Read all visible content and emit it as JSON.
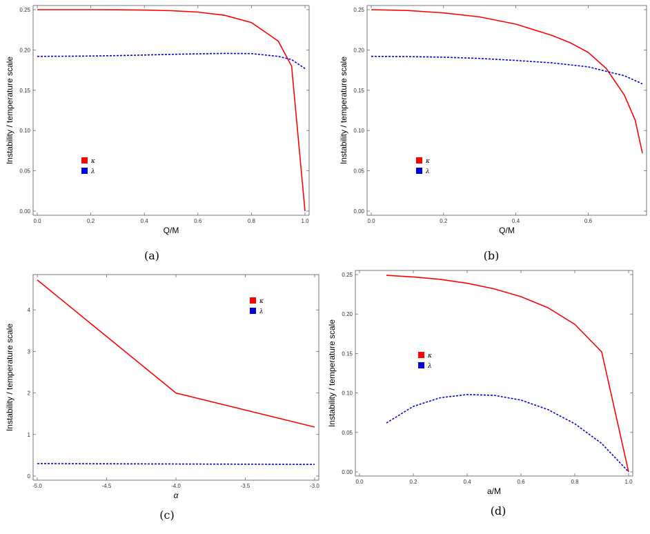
{
  "chart_data": [
    {
      "type": "line",
      "panel": "a",
      "caption": "(a)",
      "xlabel": "Q/M",
      "ylabel": "Instability / temperature scale",
      "xlim": [
        0,
        1.0
      ],
      "ylim": [
        0,
        0.25
      ],
      "xticks": [
        0.0,
        0.2,
        0.4,
        0.6,
        0.8,
        1.0
      ],
      "yticks": [
        0.0,
        0.05,
        0.1,
        0.15,
        0.2,
        0.25
      ],
      "xtick_labels": [
        "0.0",
        "0.2",
        "0.4",
        "0.6",
        "0.8",
        "1.0"
      ],
      "ytick_labels": [
        "0.00",
        "0.05",
        "0.10",
        "0.15",
        "0.20",
        "0.25"
      ],
      "legend_position": "left",
      "series": [
        {
          "name": "κ",
          "color": "#ff0000",
          "dash": false,
          "x": [
            0,
            0.1,
            0.2,
            0.3,
            0.4,
            0.5,
            0.6,
            0.7,
            0.8,
            0.9,
            0.95,
            1.0
          ],
          "y": [
            0.25,
            0.25,
            0.25,
            0.2498,
            0.2495,
            0.2487,
            0.247,
            0.243,
            0.234,
            0.211,
            0.18,
            0.0
          ]
        },
        {
          "name": "λ",
          "color": "#0000dd",
          "dash": true,
          "x": [
            0,
            0.1,
            0.2,
            0.3,
            0.4,
            0.5,
            0.6,
            0.7,
            0.8,
            0.9,
            0.95,
            1.0
          ],
          "y": [
            0.192,
            0.1922,
            0.1925,
            0.193,
            0.1937,
            0.1945,
            0.1952,
            0.1957,
            0.1955,
            0.192,
            0.188,
            0.177
          ]
        }
      ]
    },
    {
      "type": "line",
      "panel": "b",
      "caption": "(b)",
      "xlabel": "Q/M",
      "ylabel": "Instability / temperature scale",
      "xlim": [
        0,
        0.75
      ],
      "ylim": [
        0,
        0.25
      ],
      "xticks": [
        0.0,
        0.2,
        0.4,
        0.6
      ],
      "yticks": [
        0.0,
        0.05,
        0.1,
        0.15,
        0.2,
        0.25
      ],
      "xtick_labels": [
        "0.0",
        "0.2",
        "0.4",
        "0.6"
      ],
      "ytick_labels": [
        "0.00",
        "0.05",
        "0.10",
        "0.15",
        "0.20",
        "0.25"
      ],
      "legend_position": "left",
      "series": [
        {
          "name": "κ",
          "color": "#ff0000",
          "dash": false,
          "x": [
            0,
            0.1,
            0.2,
            0.3,
            0.4,
            0.5,
            0.55,
            0.6,
            0.65,
            0.7,
            0.73,
            0.75
          ],
          "y": [
            0.25,
            0.249,
            0.246,
            0.241,
            0.232,
            0.218,
            0.209,
            0.197,
            0.177,
            0.144,
            0.113,
            0.072
          ]
        },
        {
          "name": "λ",
          "color": "#0000dd",
          "dash": true,
          "x": [
            0,
            0.1,
            0.2,
            0.3,
            0.4,
            0.5,
            0.6,
            0.7,
            0.75
          ],
          "y": [
            0.192,
            0.1918,
            0.191,
            0.1895,
            0.187,
            0.184,
            0.179,
            0.168,
            0.158
          ]
        }
      ]
    },
    {
      "type": "line",
      "panel": "c",
      "caption": "(c)",
      "xlabel": "α",
      "ylabel": "Instability / temperature scale",
      "xlim": [
        -5.0,
        -3.0
      ],
      "ylim": [
        0,
        4.75
      ],
      "xticks": [
        -5.0,
        -4.5,
        -4.0,
        -3.5,
        -3.0
      ],
      "yticks": [
        0,
        1,
        2,
        3,
        4
      ],
      "xtick_labels": [
        "-5.0",
        "-4.5",
        "-4.0",
        "-3.5",
        "-3.0"
      ],
      "ytick_labels": [
        "0",
        "1",
        "2",
        "3",
        "4"
      ],
      "legend_position": "top-right",
      "series": [
        {
          "name": "κ",
          "color": "#ff0000",
          "dash": false,
          "x": [
            -5.0,
            -4.0,
            -3.0
          ],
          "y": [
            4.72,
            2.0,
            1.18
          ]
        },
        {
          "name": "λ",
          "color": "#0000dd",
          "dash": true,
          "x": [
            -5.0,
            -4.0,
            -3.0
          ],
          "y": [
            0.3,
            0.29,
            0.28
          ]
        }
      ]
    },
    {
      "type": "line",
      "panel": "d",
      "caption": "(d)",
      "xlabel": "a/M",
      "ylabel": "Instability / temperature scale",
      "xlim": [
        0,
        1.0
      ],
      "ylim": [
        0,
        0.25
      ],
      "xticks": [
        0.0,
        0.2,
        0.4,
        0.6,
        0.8,
        1.0
      ],
      "yticks": [
        0.0,
        0.05,
        0.1,
        0.15,
        0.2,
        0.25
      ],
      "xtick_labels": [
        "0.0",
        "0.2",
        "0.4",
        "0.6",
        "0.8",
        "1.0"
      ],
      "ytick_labels": [
        "0.00",
        "0.05",
        "0.10",
        "0.15",
        "0.20",
        "0.25"
      ],
      "legend_position": "left",
      "series": [
        {
          "name": "κ",
          "color": "#ff0000",
          "dash": false,
          "x": [
            0.1,
            0.2,
            0.3,
            0.4,
            0.5,
            0.6,
            0.7,
            0.8,
            0.9,
            1.0
          ],
          "y": [
            0.249,
            0.247,
            0.244,
            0.239,
            0.232,
            0.222,
            0.208,
            0.187,
            0.152,
            0.0
          ]
        },
        {
          "name": "λ",
          "color": "#0000dd",
          "dash": true,
          "x": [
            0.1,
            0.2,
            0.3,
            0.4,
            0.5,
            0.6,
            0.7,
            0.8,
            0.9,
            1.0
          ],
          "y": [
            0.062,
            0.083,
            0.094,
            0.098,
            0.097,
            0.091,
            0.079,
            0.061,
            0.036,
            0.0
          ]
        }
      ]
    }
  ]
}
